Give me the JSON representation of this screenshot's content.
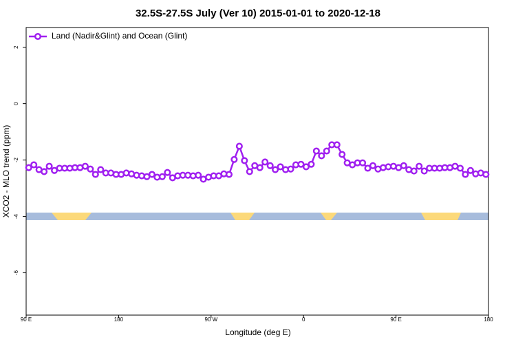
{
  "chart_data": {
    "type": "line",
    "title": "32.5S-27.5S July (Ver 10)   2015-01-01 to 2020-12-18",
    "x_label": "Longitude (deg E)",
    "y_label": "XCO2 - MLO trend (ppm)",
    "xlim": [
      90,
      540
    ],
    "ylim": [
      -7.5,
      2.7
    ],
    "xticks": [
      {
        "value": 90,
        "label": "90 E"
      },
      {
        "value": 180,
        "label": "180"
      },
      {
        "value": 270,
        "label": "90 W"
      },
      {
        "value": 360,
        "label": "0"
      },
      {
        "value": 450,
        "label": "90 E"
      },
      {
        "value": 540,
        "label": "180"
      }
    ],
    "yticks": [
      2,
      0,
      -2,
      -4,
      -6
    ],
    "legend": "topleft",
    "x": [
      92.5,
      97.5,
      102.5,
      107.5,
      112.5,
      117.5,
      122.5,
      127.5,
      132.5,
      137.5,
      142.5,
      147.5,
      152.5,
      157.5,
      162.5,
      167.5,
      172.5,
      177.5,
      182.5,
      187.5,
      192.5,
      197.5,
      202.5,
      207.5,
      212.5,
      217.5,
      222.5,
      227.5,
      232.5,
      237.5,
      242.5,
      247.5,
      252.5,
      257.5,
      262.5,
      267.5,
      272.5,
      277.5,
      282.5,
      287.5,
      292.5,
      297.5,
      302.5,
      307.5,
      312.5,
      317.5,
      322.5,
      327.5,
      332.5,
      337.5,
      342.5,
      347.5,
      352.5,
      357.5,
      362.5,
      367.5,
      372.5,
      377.5,
      382.5,
      387.5,
      392.5,
      397.5,
      402.5,
      407.5,
      412.5,
      417.5,
      422.5,
      427.5,
      432.5,
      437.5,
      442.5,
      447.5,
      452.5,
      457.5,
      462.5,
      467.5,
      472.5,
      477.5,
      482.5,
      487.5,
      492.5,
      497.5,
      502.5,
      507.5,
      512.5,
      517.5,
      522.5,
      527.5,
      532.5,
      537.5
    ],
    "series": [
      {
        "name": "Land (Nadir&Glint) and Ocean (Glint)",
        "color": "#a020f0",
        "values": [
          -2.27,
          -2.17,
          -2.34,
          -2.41,
          -2.22,
          -2.37,
          -2.29,
          -2.29,
          -2.29,
          -2.27,
          -2.27,
          -2.22,
          -2.32,
          -2.51,
          -2.34,
          -2.46,
          -2.46,
          -2.51,
          -2.51,
          -2.46,
          -2.49,
          -2.54,
          -2.56,
          -2.59,
          -2.51,
          -2.61,
          -2.59,
          -2.44,
          -2.63,
          -2.56,
          -2.54,
          -2.54,
          -2.56,
          -2.54,
          -2.68,
          -2.61,
          -2.56,
          -2.56,
          -2.49,
          -2.51,
          -1.98,
          -1.51,
          -2.02,
          -2.41,
          -2.2,
          -2.27,
          -2.07,
          -2.2,
          -2.34,
          -2.24,
          -2.34,
          -2.32,
          -2.17,
          -2.15,
          -2.24,
          -2.15,
          -1.68,
          -1.85,
          -1.68,
          -1.46,
          -1.46,
          -1.8,
          -2.1,
          -2.17,
          -2.1,
          -2.1,
          -2.29,
          -2.2,
          -2.32,
          -2.27,
          -2.24,
          -2.22,
          -2.27,
          -2.2,
          -2.34,
          -2.39,
          -2.22,
          -2.39,
          -2.29,
          -2.29,
          -2.29,
          -2.27,
          -2.27,
          -2.22,
          -2.29,
          -2.51,
          -2.37,
          -2.49,
          -2.46,
          -2.51
        ]
      }
    ]
  }
}
